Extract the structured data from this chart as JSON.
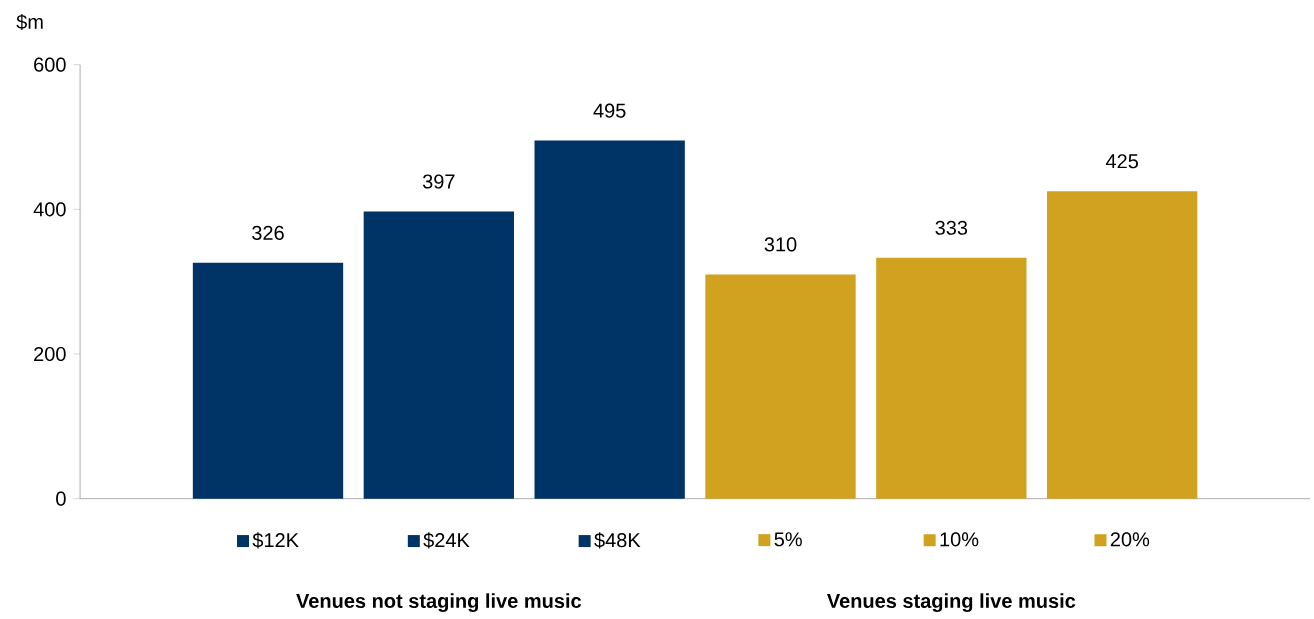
{
  "chart_data": {
    "type": "bar",
    "ylabel": "$m",
    "categories": [
      "$12K",
      "$24K",
      "$48K",
      "5%",
      "10%",
      "20%"
    ],
    "values": [
      326,
      397,
      495,
      310,
      333,
      425
    ],
    "colors": [
      "#003366",
      "#003366",
      "#003366",
      "#d0a220",
      "#d0a220",
      "#d0a220"
    ],
    "ylim": [
      0,
      600
    ],
    "yticks": [
      0,
      200,
      400,
      600
    ],
    "data_labels": true,
    "grid": false,
    "annotations": [
      "Venues not staging live music",
      "Venues staging live music"
    ]
  }
}
